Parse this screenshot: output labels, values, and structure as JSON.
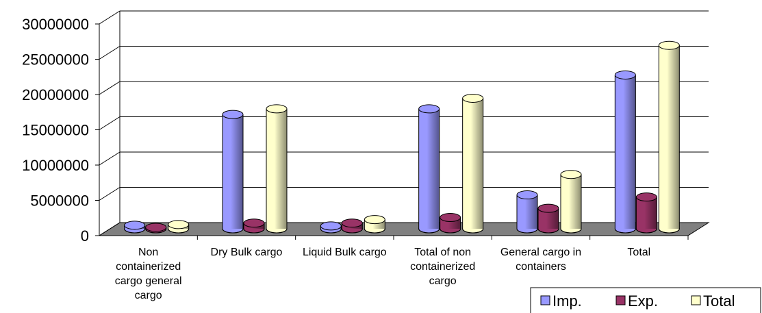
{
  "chart_data": {
    "type": "bar3d",
    "categories": [
      "Non containerized cargo general cargo",
      "Dry Bulk cargo",
      "Liquid Bulk cargo",
      "Total of non containerized cargo",
      "General cargo in containers",
      "Total"
    ],
    "series": [
      {
        "name": "Imp.",
        "color": "#9999ff",
        "values": [
          500000,
          16200000,
          400000,
          17000000,
          4800000,
          21800000
        ]
      },
      {
        "name": "Exp.",
        "color": "#993366",
        "values": [
          200000,
          800000,
          800000,
          1600000,
          2900000,
          4500000
        ]
      },
      {
        "name": "Total",
        "color": "#ffffcc",
        "values": [
          600000,
          17000000,
          1300000,
          18500000,
          7700000,
          26000000
        ]
      }
    ],
    "ylim": [
      0,
      30000000
    ],
    "yticks": [
      0,
      5000000,
      10000000,
      15000000,
      20000000,
      25000000,
      30000000
    ],
    "grid": true,
    "legend": "bottom-right"
  }
}
